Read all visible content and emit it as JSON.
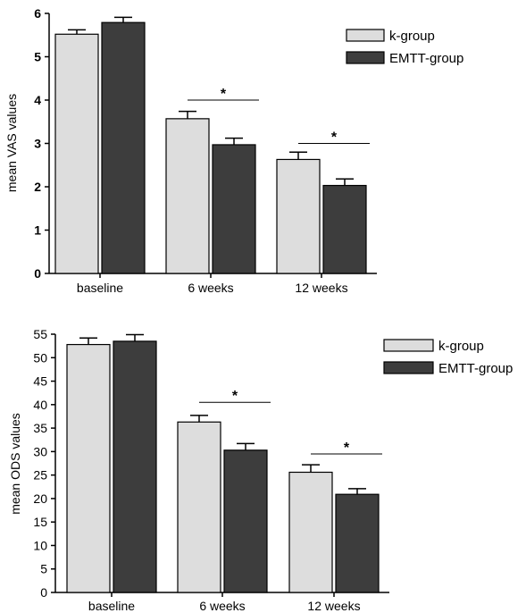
{
  "chart_data": [
    {
      "type": "bar",
      "ylabel": "mean VAS values",
      "categories": [
        "baseline",
        "6 weeks",
        "12 weeks"
      ],
      "ylim": [
        0,
        6
      ],
      "yticks": [
        "0",
        "1",
        "2",
        "3",
        "4",
        "5",
        "6"
      ],
      "ytick_values": [
        0,
        1,
        2,
        3,
        4,
        5,
        6
      ],
      "series": [
        {
          "name": "k-group",
          "values": [
            5.52,
            3.57,
            2.63
          ],
          "errors": [
            0.1,
            0.17,
            0.17
          ],
          "color": "#dddddd"
        },
        {
          "name": "EMTT-group",
          "values": [
            5.79,
            2.97,
            2.03
          ],
          "errors": [
            0.12,
            0.15,
            0.15
          ],
          "color": "#3d3d3d"
        }
      ],
      "significance": [
        {
          "category": 1,
          "bar_y": 4.0,
          "text": "*"
        },
        {
          "category": 2,
          "bar_y": 3.0,
          "text": "*"
        }
      ],
      "legend": {
        "placement": "top-right"
      },
      "grid": false
    },
    {
      "type": "bar",
      "ylabel": "mean ODS values",
      "categories": [
        "baseline",
        "6 weeks",
        "12 weeks"
      ],
      "ylim": [
        0,
        55
      ],
      "yticks": [
        "0",
        "5",
        "10",
        "15",
        "20",
        "25",
        "30",
        "35",
        "40",
        "45",
        "50",
        "55"
      ],
      "ytick_values": [
        0,
        5,
        10,
        15,
        20,
        25,
        30,
        35,
        40,
        45,
        50,
        55
      ],
      "series": [
        {
          "name": "k-group",
          "values": [
            52.8,
            36.3,
            25.6
          ],
          "errors": [
            1.4,
            1.4,
            1.6
          ],
          "color": "#dddddd"
        },
        {
          "name": "EMTT-group",
          "values": [
            53.5,
            30.3,
            20.9
          ],
          "errors": [
            1.4,
            1.4,
            1.2
          ],
          "color": "#3d3d3d"
        }
      ],
      "significance": [
        {
          "category": 1,
          "bar_y": 40.5,
          "text": "*"
        },
        {
          "category": 2,
          "bar_y": 29.5,
          "text": "*"
        }
      ],
      "legend": {
        "placement": "top-right"
      },
      "grid": false
    }
  ]
}
